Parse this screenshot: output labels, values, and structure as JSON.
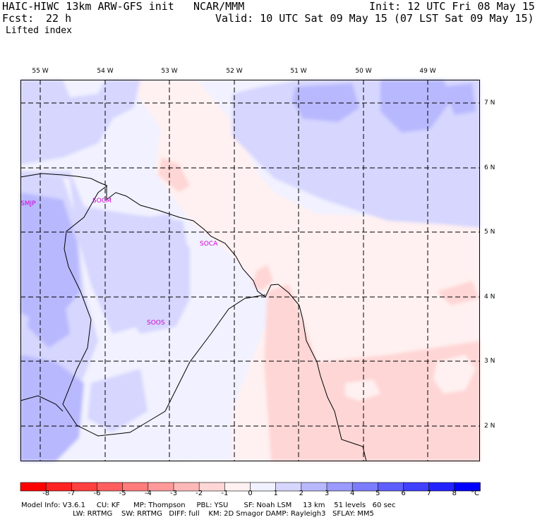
{
  "header": {
    "model_title": "HAIC-HIWC 13km ARW-GFS init",
    "org": "NCAR/MMM",
    "init": "Init: 12 UTC Fri 08 May 15",
    "fcst_label": "Fcst:",
    "fcst_value": "22 h",
    "valid": "Valid: 10 UTC Sat 09 May 15 (07 LST Sat 09 May 15)",
    "field": "Lifted index"
  },
  "map": {
    "lon_labels": [
      "55 W",
      "54 W",
      "53 W",
      "52 W",
      "51 W",
      "50 W",
      "49 W"
    ],
    "lat_labels": [
      "7 N",
      "6 N",
      "5 N",
      "4 N",
      "3 N",
      "2 N"
    ],
    "stations": [
      {
        "id": "smjp",
        "label": "SMJP"
      },
      {
        "id": "socm",
        "label": "SOCM"
      },
      {
        "id": "soca",
        "label": "SOCA"
      },
      {
        "id": "soos",
        "label": "SOOS"
      }
    ]
  },
  "colorbar": {
    "unit": "°C",
    "labels": [
      "-8",
      "-7",
      "-6",
      "-5",
      "-4",
      "-3",
      "-2",
      "-1",
      "0",
      "1",
      "2",
      "3",
      "4",
      "5",
      "6",
      "7",
      "8"
    ],
    "colors": [
      "#ff0000",
      "#ff2222",
      "#ff4040",
      "#ff5e5e",
      "#ff7c7c",
      "#ff9a9a",
      "#ffb8b8",
      "#ffd6d6",
      "#fff1f1",
      "#f1f1ff",
      "#d6d6ff",
      "#b8b8ff",
      "#9a9aff",
      "#7c7cff",
      "#5e5eff",
      "#4040ff",
      "#2222ff",
      "#0000ff"
    ]
  },
  "footer": {
    "line1": "Model Info: V3.6.1     CU: KF      MP: Thompson     PBL: YSU       SF: Noah LSM     13 km    51 levels   60 sec",
    "line2": "                       LW: RRTMG    SW: RRTMG   DIFF: full    KM: 2D Smagor DAMP: Rayleigh3   SFLAY: MM5"
  }
}
